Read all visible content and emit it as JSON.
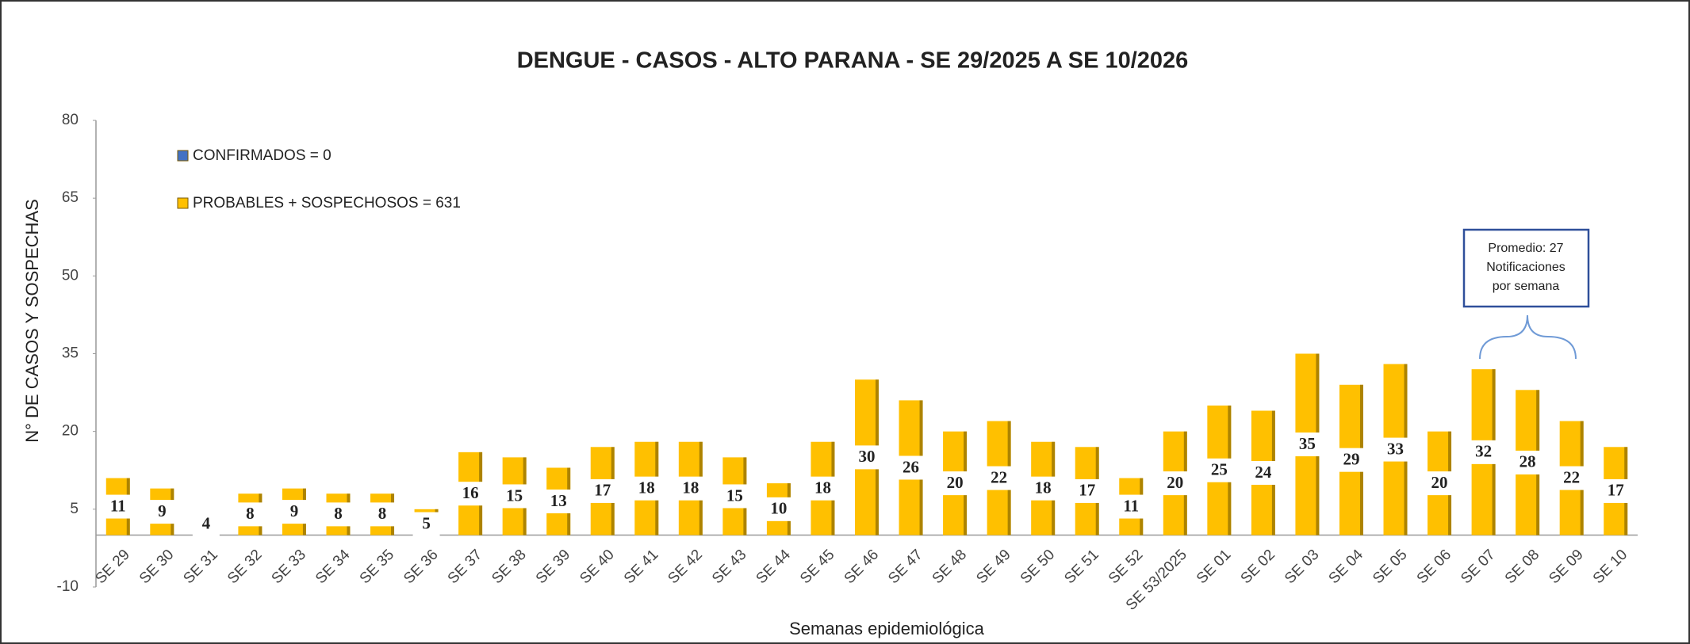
{
  "chart_data": {
    "type": "bar",
    "title": "DENGUE - CASOS - ALTO PARANA - SE 29/2025 A SE 10/2026",
    "x_label": "Semanas epidemiológica",
    "y_label": "N° DE CASOS Y SOSPECHAS",
    "annotation": [
      "Promedio: 27",
      "Notificaciones",
      "por semana"
    ],
    "categories": [
      "SE 29",
      "SE 30",
      "SE 31",
      "SE 32",
      "SE 33",
      "SE 34",
      "SE 35",
      "SE 36",
      "SE 37",
      "SE 38",
      "SE 39",
      "SE 40",
      "SE 41",
      "SE 42",
      "SE 43",
      "SE 44",
      "SE 45",
      "SE 46",
      "SE 47",
      "SE 48",
      "SE 49",
      "SE 50",
      "SE 51",
      "SE 52",
      "SE 53/2025",
      "SE 01",
      "SE 02",
      "SE 03",
      "SE 04",
      "SE 05",
      "SE 06",
      "SE 07",
      "SE 08",
      "SE 09",
      "SE 10"
    ],
    "series": [
      {
        "name": "CONFIRMADOS = 0",
        "color": "#4472c4",
        "values": [
          0,
          0,
          0,
          0,
          0,
          0,
          0,
          0,
          0,
          0,
          0,
          0,
          0,
          0,
          0,
          0,
          0,
          0,
          0,
          0,
          0,
          0,
          0,
          0,
          0,
          0,
          0,
          0,
          0,
          0,
          0,
          0,
          0,
          0,
          0
        ]
      },
      {
        "name": "PROBABLES + SOSPECHOSOS = 631",
        "color": "#ffc000",
        "values": [
          11,
          9,
          4,
          8,
          9,
          8,
          8,
          5,
          16,
          15,
          13,
          17,
          18,
          18,
          15,
          10,
          18,
          30,
          26,
          20,
          22,
          18,
          17,
          11,
          20,
          25,
          24,
          35,
          29,
          33,
          20,
          32,
          28,
          22,
          17
        ]
      }
    ],
    "ylim": [
      -10,
      80
    ],
    "yticks": [
      -10,
      5,
      20,
      35,
      50,
      65,
      80
    ]
  }
}
